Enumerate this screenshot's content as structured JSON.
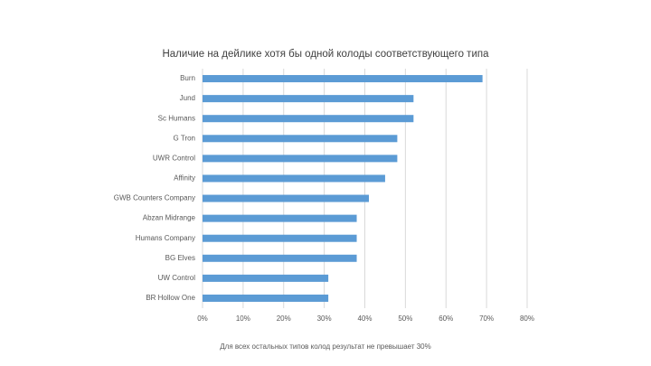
{
  "chart_data": {
    "type": "barh",
    "title": "Наличие на дейлике хотя бы одной колоды соответствующего типа",
    "categories": [
      "Burn",
      "Jund",
      "Sc Humans",
      "G Tron",
      "UWR Control",
      "Affinity",
      "GWB Counters Company",
      "Abzan Midrange",
      "Humans Company",
      "BG Elves",
      "UW Control",
      "BR Hollow One"
    ],
    "values": [
      69,
      52,
      52,
      48,
      48,
      45,
      41,
      38,
      38,
      38,
      31,
      31
    ],
    "color": "#5b9bd5",
    "xlim": [
      0,
      80
    ],
    "xticks": [
      {
        "value": 0,
        "label": "0%"
      },
      {
        "value": 10,
        "label": "10%"
      },
      {
        "value": 20,
        "label": "20%"
      },
      {
        "value": 30,
        "label": "30%"
      },
      {
        "value": 40,
        "label": "40%"
      },
      {
        "value": 50,
        "label": "50%"
      },
      {
        "value": 60,
        "label": "60%"
      },
      {
        "value": 70,
        "label": "70%"
      },
      {
        "value": 80,
        "label": "80%"
      }
    ],
    "grid": true,
    "note": "Для всех остальных типов колод результат не превышает 30%"
  }
}
